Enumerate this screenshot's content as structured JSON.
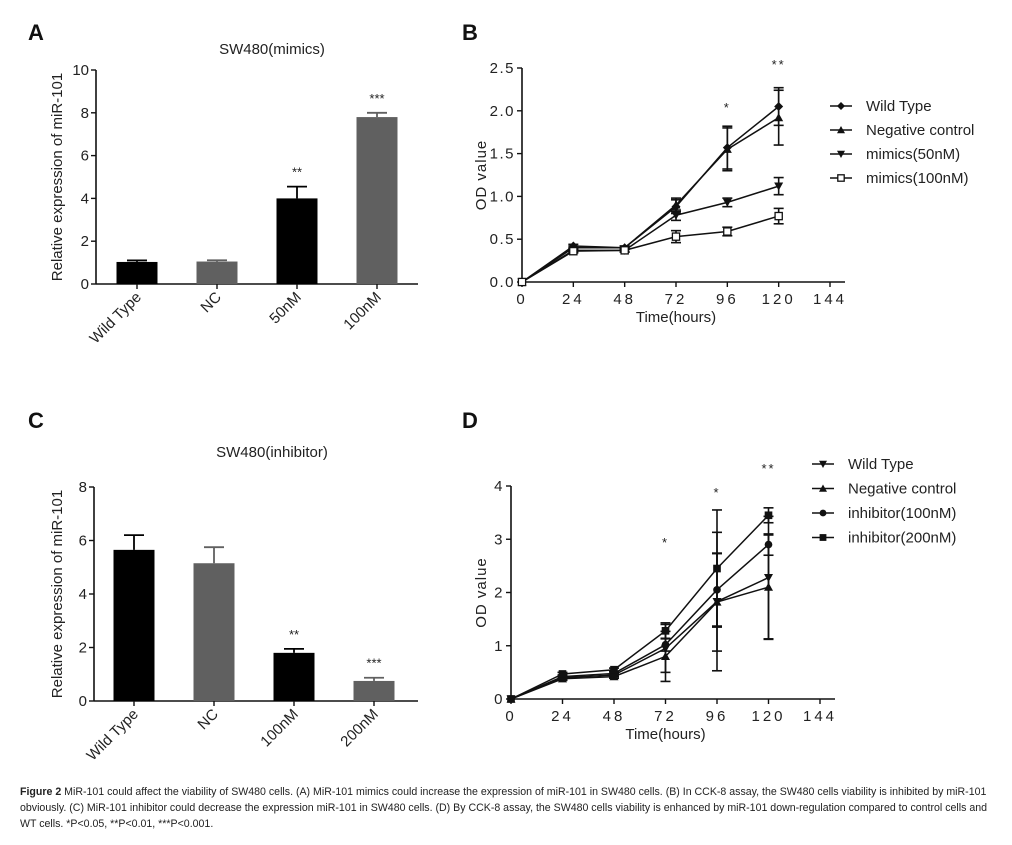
{
  "figure": {
    "caption": {
      "figure_label": "Figure 2",
      "text": " MiR-101 could affect the viability of SW480 cells. (A) MiR-101 mimics could increase the expression of miR-101 in SW480 cells. (B) In CCK-8 assay, the SW480 cells viability is inhibited by miR-101 obviously. (C) MiR-101 inhibitor could decrease the expression miR-101 in SW480 cells. (D) By CCK-8 assay, the SW480 cells viability is enhanced by miR-101 down-regulation compared to control cells and WT cells. *P<0.05, **P<0.01, ***P<0.001."
    }
  },
  "colors": {
    "black_bar": "#000000",
    "gray_bar": "#606060",
    "line": "#111111"
  },
  "chart_data": [
    {
      "panel": "A",
      "type": "bar",
      "title": "SW480(mimics)",
      "xlabel": "",
      "ylabel": "Relative expression of miR-101",
      "ylim": [
        0,
        10
      ],
      "yticks": [
        0,
        2,
        4,
        6,
        8,
        10
      ],
      "categories": [
        "Wild Type",
        "NC",
        "50nM",
        "100nM"
      ],
      "values": [
        1.03,
        1.05,
        4.0,
        7.8
      ],
      "errors": [
        0.07,
        0.06,
        0.55,
        0.2
      ],
      "bar_colors": [
        "#000000",
        "#606060",
        "#000000",
        "#606060"
      ],
      "significance": [
        "",
        "",
        "**",
        "***"
      ],
      "grid": false
    },
    {
      "panel": "B",
      "type": "line",
      "title": "",
      "xlabel": "Time(hours)",
      "ylabel": "OD value",
      "xlim": [
        0,
        144
      ],
      "ylim": [
        0,
        2.5
      ],
      "xticks": [
        0,
        24,
        48,
        72,
        96,
        120,
        144
      ],
      "yticks": [
        "0.0",
        "0.5",
        "1.0",
        "1.5",
        "2.0",
        "2.5"
      ],
      "x": [
        0,
        24,
        48,
        72,
        96,
        120
      ],
      "series": [
        {
          "name": "Wild Type",
          "marker": "diamond",
          "values": [
            0,
            0.42,
            0.4,
            0.88,
            1.57,
            2.05
          ],
          "errors": [
            0,
            0.02,
            0.02,
            0.08,
            0.25,
            0.22
          ]
        },
        {
          "name": "Negative control",
          "marker": "triangle-up",
          "values": [
            0,
            0.4,
            0.4,
            0.9,
            1.55,
            1.92
          ],
          "errors": [
            0,
            0.02,
            0.02,
            0.08,
            0.25,
            0.32
          ]
        },
        {
          "name": "mimics(50nM)",
          "marker": "triangle-down",
          "values": [
            0,
            0.37,
            0.37,
            0.78,
            0.93,
            1.12
          ],
          "errors": [
            0,
            0.02,
            0.02,
            0.06,
            0.05,
            0.1
          ]
        },
        {
          "name": "mimics(100nM)",
          "marker": "square-open",
          "values": [
            0,
            0.36,
            0.37,
            0.53,
            0.59,
            0.77
          ],
          "errors": [
            0,
            0.02,
            0.02,
            0.07,
            0.05,
            0.09
          ]
        }
      ],
      "annotations": [
        {
          "x": 96,
          "text": "*"
        },
        {
          "x": 120,
          "text": "**"
        }
      ],
      "legend": "right",
      "grid": false
    },
    {
      "panel": "C",
      "type": "bar",
      "title": "SW480(inhibitor)",
      "xlabel": "",
      "ylabel": "Relative expression of miR-101",
      "ylim": [
        0,
        8
      ],
      "yticks": [
        0,
        2,
        4,
        6,
        8
      ],
      "categories": [
        "Wild Type",
        "NC",
        "100nM",
        "200nM"
      ],
      "values": [
        5.65,
        5.15,
        1.8,
        0.75
      ],
      "errors": [
        0.55,
        0.6,
        0.15,
        0.12
      ],
      "bar_colors": [
        "#000000",
        "#606060",
        "#000000",
        "#606060"
      ],
      "significance": [
        "",
        "",
        "**",
        "***"
      ],
      "grid": false
    },
    {
      "panel": "D",
      "type": "line",
      "title": "",
      "xlabel": "Time(hours)",
      "ylabel": "OD value",
      "xlim": [
        0,
        144
      ],
      "ylim": [
        0,
        4
      ],
      "xticks": [
        0,
        24,
        48,
        72,
        96,
        120,
        144
      ],
      "yticks": [
        "0",
        "1",
        "2",
        "3",
        "4"
      ],
      "x": [
        0,
        24,
        48,
        72,
        96,
        120
      ],
      "series": [
        {
          "name": "Wild Type",
          "marker": "triangle-down",
          "values": [
            0,
            0.4,
            0.45,
            0.95,
            1.83,
            2.28
          ],
          "errors": [
            0,
            0.03,
            0.03,
            0.45,
            1.3,
            1.15
          ]
        },
        {
          "name": "Negative control",
          "marker": "triangle-up",
          "values": [
            0,
            0.38,
            0.42,
            0.8,
            1.82,
            2.1
          ],
          "errors": [
            0,
            0.03,
            0.03,
            0.47,
            0.92,
            0.98
          ]
        },
        {
          "name": "inhibitor(100nM)",
          "marker": "circle",
          "values": [
            0,
            0.42,
            0.48,
            1.02,
            2.05,
            2.9
          ],
          "errors": [
            0,
            0.03,
            0.03,
            0.12,
            0.68,
            0.2
          ]
        },
        {
          "name": "inhibitor(200nM)",
          "marker": "square",
          "values": [
            0,
            0.47,
            0.55,
            1.28,
            2.45,
            3.45
          ],
          "errors": [
            0,
            0.03,
            0.03,
            0.15,
            1.1,
            0.14
          ]
        }
      ],
      "annotations": [
        {
          "x": 72,
          "text": "*"
        },
        {
          "x": 96,
          "text": "*"
        },
        {
          "x": 120,
          "text": "**"
        }
      ],
      "legend": "top-right",
      "grid": false
    }
  ]
}
